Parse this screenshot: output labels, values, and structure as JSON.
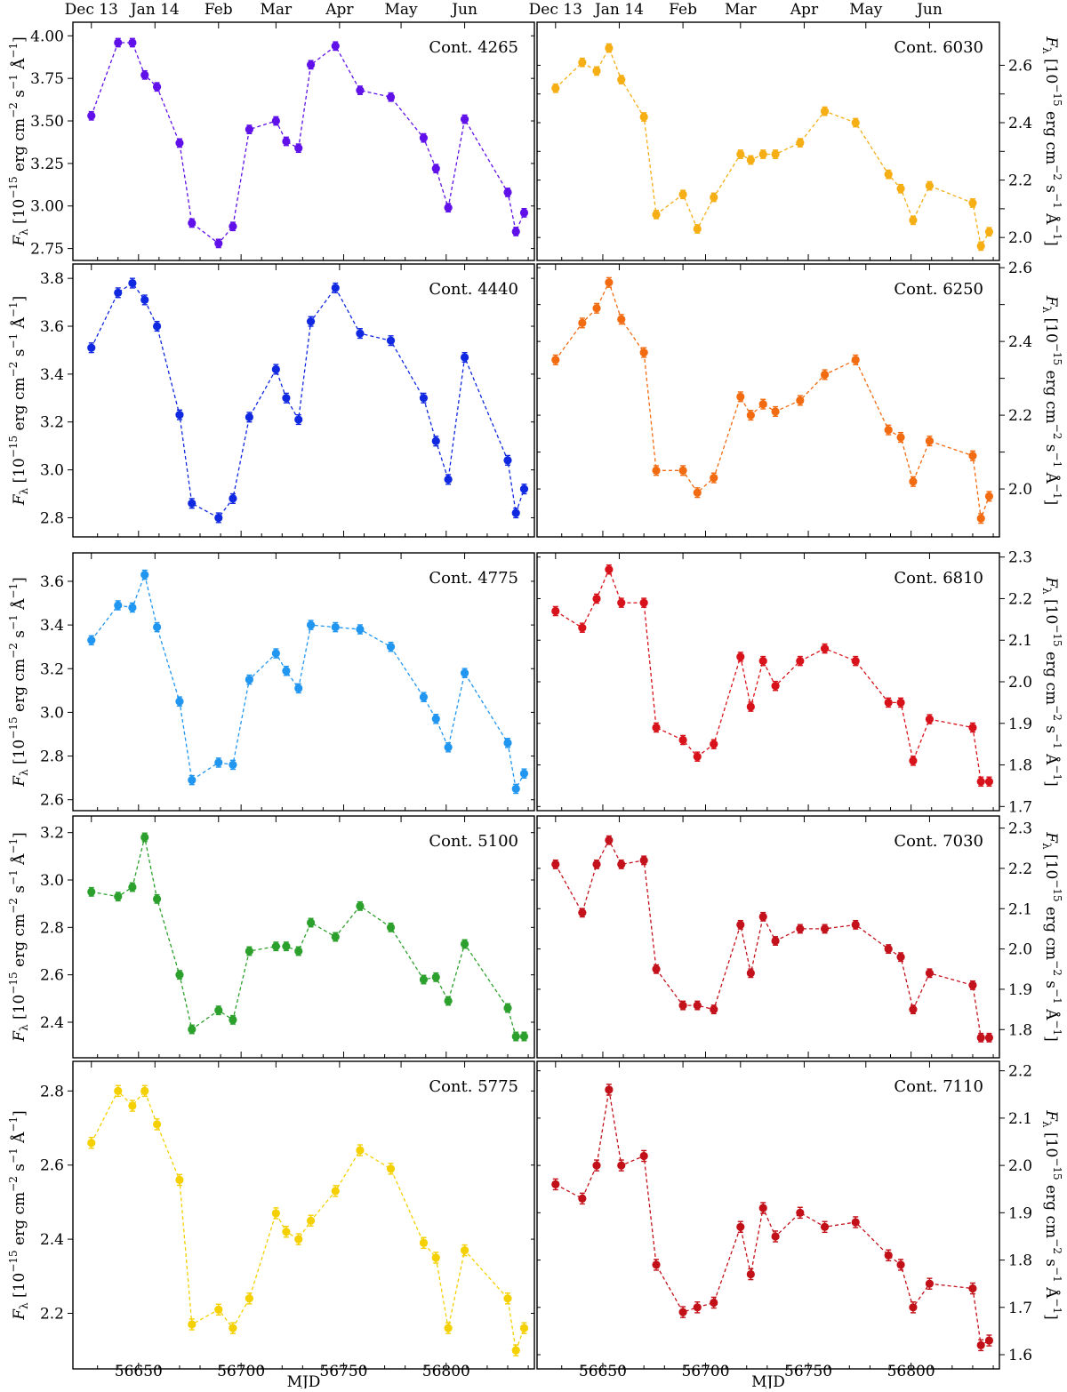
{
  "figure": {
    "xlabel": "MJD",
    "ylabel_main": "F",
    "ylabel_sub": "λ",
    "ylabel_units": "[10",
    "ylabel_exp": "−15",
    "ylabel_rest": "erg cm",
    "ylabel_exp2": "−2",
    "ylabel_s": "s",
    "ylabel_exp3": "−1",
    "ylabel_A": "Å",
    "ylabel_exp4": "−1",
    "ylabel_close": "]",
    "month_labels": [
      "Dec 13",
      "Jan 14",
      "Feb",
      "Mar",
      "Apr",
      "May",
      "Jun"
    ],
    "month_mjd": [
      56627,
      56658,
      56689,
      56717,
      56748,
      56778,
      56809
    ]
  },
  "chart_data": [
    {
      "type": "scatter",
      "name": "Cont. 4265",
      "color": "#6010e8",
      "x": [
        56627,
        56640,
        56647,
        56653,
        56659,
        56670,
        56676,
        56689,
        56696,
        56704,
        56717,
        56722,
        56728,
        56734,
        56746,
        56758,
        56773,
        56789,
        56795,
        56801,
        56809,
        56830,
        56834,
        56838
      ],
      "y": [
        3.53,
        3.96,
        3.96,
        3.77,
        3.7,
        3.37,
        2.9,
        2.78,
        2.88,
        3.45,
        3.5,
        3.38,
        3.34,
        3.83,
        3.94,
        3.68,
        3.64,
        3.4,
        3.22,
        2.99,
        3.51,
        3.08,
        2.85,
        2.96
      ],
      "ylim": [
        2.68,
        4.08
      ],
      "yticks": [
        2.75,
        3.0,
        3.25,
        3.5,
        3.75,
        4.0
      ],
      "ytick_labels": [
        "2.75",
        "3.00",
        "3.25",
        "3.50",
        "3.75",
        "4.00"
      ],
      "side": "left"
    },
    {
      "type": "scatter",
      "name": "Cont. 4440",
      "color": "#0f28e0",
      "x": [
        56627,
        56640,
        56647,
        56653,
        56659,
        56670,
        56676,
        56689,
        56696,
        56704,
        56717,
        56722,
        56728,
        56734,
        56746,
        56758,
        56773,
        56789,
        56795,
        56801,
        56809,
        56830,
        56834,
        56838
      ],
      "y": [
        3.51,
        3.74,
        3.78,
        3.71,
        3.6,
        3.23,
        2.86,
        2.8,
        2.88,
        3.22,
        3.42,
        3.3,
        3.21,
        3.62,
        3.76,
        3.57,
        3.54,
        3.3,
        3.12,
        2.96,
        3.47,
        3.04,
        2.82,
        2.92
      ],
      "ylim": [
        2.72,
        3.86
      ],
      "yticks": [
        2.8,
        3.0,
        3.2,
        3.4,
        3.6,
        3.8
      ],
      "ytick_labels": [
        "2.8",
        "3.0",
        "3.2",
        "3.4",
        "3.6",
        "3.8"
      ],
      "side": "left"
    },
    {
      "type": "scatter",
      "name": "Cont. 4775",
      "color": "#2196f0",
      "x": [
        56627,
        56640,
        56647,
        56653,
        56659,
        56670,
        56676,
        56689,
        56696,
        56704,
        56717,
        56722,
        56728,
        56734,
        56746,
        56758,
        56773,
        56789,
        56795,
        56801,
        56809,
        56830,
        56834,
        56838
      ],
      "y": [
        3.33,
        3.49,
        3.48,
        3.63,
        3.39,
        3.05,
        2.69,
        2.77,
        2.76,
        3.15,
        3.27,
        3.19,
        3.11,
        3.4,
        3.39,
        3.38,
        3.3,
        3.07,
        2.97,
        2.84,
        3.18,
        2.86,
        2.65,
        2.72
      ],
      "ylim": [
        2.55,
        3.73
      ],
      "yticks": [
        2.6,
        2.8,
        3.0,
        3.2,
        3.4,
        3.6
      ],
      "ytick_labels": [
        "2.6",
        "2.8",
        "3.0",
        "3.2",
        "3.4",
        "3.6"
      ],
      "side": "left"
    },
    {
      "type": "scatter",
      "name": "Cont. 5100",
      "color": "#2ca02c",
      "x": [
        56627,
        56640,
        56647,
        56653,
        56659,
        56670,
        56676,
        56689,
        56696,
        56704,
        56717,
        56722,
        56728,
        56734,
        56746,
        56758,
        56773,
        56789,
        56795,
        56801,
        56809,
        56830,
        56834,
        56838
      ],
      "y": [
        2.95,
        2.93,
        2.97,
        3.18,
        2.92,
        2.6,
        2.37,
        2.45,
        2.41,
        2.7,
        2.72,
        2.72,
        2.7,
        2.82,
        2.76,
        2.89,
        2.8,
        2.58,
        2.59,
        2.49,
        2.73,
        2.46,
        2.34,
        2.34
      ],
      "ylim": [
        2.25,
        3.27
      ],
      "yticks": [
        2.4,
        2.6,
        2.8,
        3.0,
        3.2
      ],
      "ytick_labels": [
        "2.4",
        "2.6",
        "2.8",
        "3.0",
        "3.2"
      ],
      "side": "left"
    },
    {
      "type": "scatter",
      "name": "Cont. 5775",
      "color": "#f5d000",
      "x": [
        56627,
        56640,
        56647,
        56653,
        56659,
        56670,
        56676,
        56689,
        56696,
        56704,
        56717,
        56722,
        56728,
        56734,
        56746,
        56758,
        56773,
        56789,
        56795,
        56801,
        56809,
        56830,
        56834,
        56838
      ],
      "y": [
        2.66,
        2.8,
        2.76,
        2.8,
        2.71,
        2.56,
        2.17,
        2.21,
        2.16,
        2.24,
        2.47,
        2.42,
        2.4,
        2.45,
        2.53,
        2.64,
        2.59,
        2.39,
        2.35,
        2.16,
        2.37,
        2.24,
        2.1,
        2.16
      ],
      "ylim": [
        2.05,
        2.88
      ],
      "yticks": [
        2.2,
        2.4,
        2.6,
        2.8
      ],
      "ytick_labels": [
        "2.2",
        "2.4",
        "2.6",
        "2.8"
      ],
      "side": "left"
    },
    {
      "type": "scatter",
      "name": "Cont. 6030",
      "color": "#f5ae14",
      "x": [
        56627,
        56640,
        56647,
        56653,
        56659,
        56670,
        56676,
        56689,
        56696,
        56704,
        56717,
        56722,
        56728,
        56734,
        56746,
        56758,
        56773,
        56789,
        56795,
        56801,
        56809,
        56830,
        56834,
        56838
      ],
      "y": [
        2.52,
        2.61,
        2.58,
        2.66,
        2.55,
        2.42,
        2.08,
        2.15,
        2.03,
        2.14,
        2.29,
        2.27,
        2.29,
        2.29,
        2.33,
        2.44,
        2.4,
        2.22,
        2.17,
        2.06,
        2.18,
        2.12,
        1.97,
        2.02
      ],
      "ylim": [
        1.92,
        2.75
      ],
      "yticks": [
        2.0,
        2.1,
        2.2,
        2.3,
        2.4,
        2.5,
        2.6
      ],
      "ytick_labels": [
        "2.0",
        "",
        "2.2",
        "",
        "2.4",
        "",
        "2.6"
      ],
      "side": "right"
    },
    {
      "type": "scatter",
      "name": "Cont. 6250",
      "color": "#f26b10",
      "x": [
        56627,
        56640,
        56647,
        56653,
        56659,
        56670,
        56676,
        56689,
        56696,
        56704,
        56717,
        56722,
        56728,
        56734,
        56746,
        56758,
        56773,
        56789,
        56795,
        56801,
        56809,
        56830,
        56834,
        56838
      ],
      "y": [
        2.35,
        2.45,
        2.49,
        2.56,
        2.46,
        2.37,
        2.05,
        2.05,
        1.99,
        2.03,
        2.25,
        2.2,
        2.23,
        2.21,
        2.24,
        2.31,
        2.35,
        2.16,
        2.14,
        2.02,
        2.13,
        2.09,
        1.92,
        1.98
      ],
      "ylim": [
        1.87,
        2.61
      ],
      "yticks": [
        2.0,
        2.1,
        2.2,
        2.3,
        2.4,
        2.5,
        2.6
      ],
      "ytick_labels": [
        "2.0",
        "",
        "2.2",
        "",
        "2.4",
        "",
        "2.6"
      ],
      "side": "right"
    },
    {
      "type": "scatter",
      "name": "Cont. 6810",
      "color": "#d8121a",
      "x": [
        56627,
        56640,
        56647,
        56653,
        56659,
        56670,
        56676,
        56689,
        56696,
        56704,
        56717,
        56722,
        56728,
        56734,
        56746,
        56758,
        56773,
        56789,
        56795,
        56801,
        56809,
        56830,
        56834,
        56838
      ],
      "y": [
        2.17,
        2.13,
        2.2,
        2.27,
        2.19,
        2.19,
        1.89,
        1.86,
        1.82,
        1.85,
        2.06,
        1.94,
        2.05,
        1.99,
        2.05,
        2.08,
        2.05,
        1.95,
        1.95,
        1.81,
        1.91,
        1.89,
        1.76,
        1.76
      ],
      "ylim": [
        1.69,
        2.31
      ],
      "yticks": [
        1.7,
        1.8,
        1.9,
        2.0,
        2.1,
        2.2,
        2.3
      ],
      "ytick_labels": [
        "1.7",
        "1.8",
        "1.9",
        "2.0",
        "2.1",
        "2.2",
        "2.3"
      ],
      "side": "right"
    },
    {
      "type": "scatter",
      "name": "Cont. 7030",
      "color": "#c4121c",
      "x": [
        56627,
        56640,
        56647,
        56653,
        56659,
        56670,
        56676,
        56689,
        56696,
        56704,
        56717,
        56722,
        56728,
        56734,
        56746,
        56758,
        56773,
        56789,
        56795,
        56801,
        56809,
        56830,
        56834,
        56838
      ],
      "y": [
        2.21,
        2.09,
        2.21,
        2.27,
        2.21,
        2.22,
        1.95,
        1.86,
        1.86,
        1.85,
        2.06,
        1.94,
        2.08,
        2.02,
        2.05,
        2.05,
        2.06,
        2.0,
        1.98,
        1.85,
        1.94,
        1.91,
        1.78,
        1.78
      ],
      "ylim": [
        1.73,
        2.33
      ],
      "yticks": [
        1.8,
        1.9,
        2.0,
        2.1,
        2.2,
        2.3
      ],
      "ytick_labels": [
        "1.8",
        "1.9",
        "2.0",
        "2.1",
        "2.2",
        "2.3"
      ],
      "side": "right"
    },
    {
      "type": "scatter",
      "name": "Cont. 7110",
      "color": "#c21018",
      "x": [
        56627,
        56640,
        56647,
        56653,
        56659,
        56670,
        56676,
        56689,
        56696,
        56704,
        56717,
        56722,
        56728,
        56734,
        56746,
        56758,
        56773,
        56789,
        56795,
        56801,
        56809,
        56830,
        56834,
        56838
      ],
      "y": [
        1.96,
        1.93,
        2.0,
        2.16,
        2.0,
        2.02,
        1.79,
        1.69,
        1.7,
        1.71,
        1.87,
        1.77,
        1.91,
        1.85,
        1.9,
        1.87,
        1.88,
        1.81,
        1.79,
        1.7,
        1.75,
        1.74,
        1.62,
        1.63
      ],
      "ylim": [
        1.57,
        2.22
      ],
      "yticks": [
        1.6,
        1.7,
        1.8,
        1.9,
        2.0,
        2.1,
        2.2
      ],
      "ytick_labels": [
        "1.6",
        "1.7",
        "1.8",
        "1.9",
        "2.0",
        "2.1",
        "2.2"
      ],
      "side": "right"
    }
  ],
  "xaxis": {
    "xlim": [
      56618,
      56843
    ],
    "xticks": [
      56650,
      56700,
      56750,
      56800
    ],
    "xtick_labels": [
      "56650",
      "56700",
      "56750",
      "56800"
    ]
  }
}
